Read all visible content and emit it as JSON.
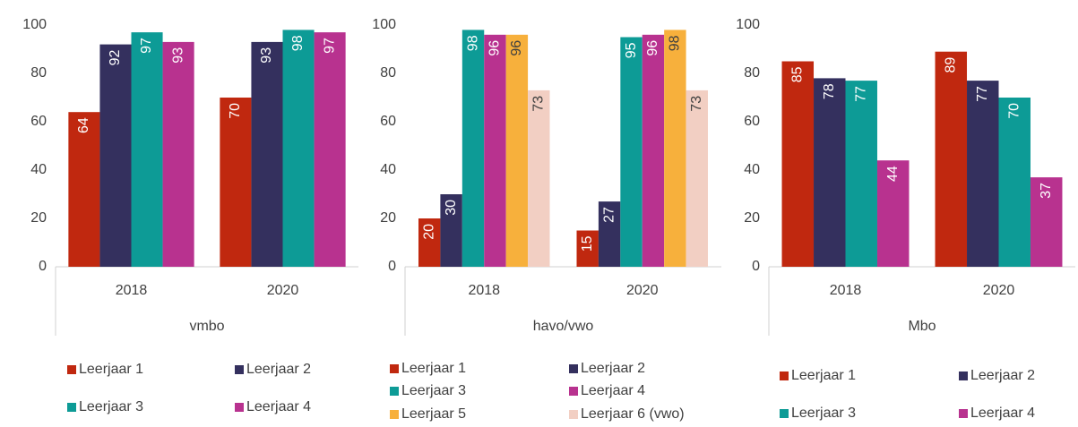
{
  "chart_data": [
    {
      "type": "bar",
      "group_label": "vmbo",
      "categories": [
        "2018",
        "2020"
      ],
      "ylim": [
        0,
        100
      ],
      "yticks": [
        0,
        20,
        40,
        60,
        80,
        100
      ],
      "series": [
        {
          "name": "Leerjaar 1",
          "color": "#c0280f",
          "values": [
            64,
            70
          ]
        },
        {
          "name": "Leerjaar 2",
          "color": "#34305e",
          "values": [
            92,
            93
          ]
        },
        {
          "name": "Leerjaar 3",
          "color": "#0d9b96",
          "values": [
            97,
            98
          ]
        },
        {
          "name": "Leerjaar 4",
          "color": "#b8328f",
          "values": [
            93,
            97
          ]
        }
      ]
    },
    {
      "type": "bar",
      "group_label": "havo/vwo",
      "categories": [
        "2018",
        "2020"
      ],
      "ylim": [
        0,
        100
      ],
      "yticks": [
        0,
        20,
        40,
        60,
        80,
        100
      ],
      "series": [
        {
          "name": "Leerjaar 1",
          "color": "#c0280f",
          "values": [
            20,
            15
          ]
        },
        {
          "name": "Leerjaar 2",
          "color": "#34305e",
          "values": [
            30,
            27
          ]
        },
        {
          "name": "Leerjaar 3",
          "color": "#0d9b96",
          "values": [
            98,
            95
          ]
        },
        {
          "name": "Leerjaar 4",
          "color": "#b8328f",
          "values": [
            96,
            96
          ]
        },
        {
          "name": "Leerjaar 5",
          "color": "#f7b03c",
          "values": [
            96,
            98
          ]
        },
        {
          "name": "Leerjaar 6 (vwo)",
          "color": "#f2cfc3",
          "values": [
            73,
            73
          ]
        }
      ]
    },
    {
      "type": "bar",
      "group_label": "Mbo",
      "categories": [
        "2018",
        "2020"
      ],
      "ylim": [
        0,
        100
      ],
      "yticks": [
        0,
        20,
        40,
        60,
        80,
        100
      ],
      "series": [
        {
          "name": "Leerjaar 1",
          "color": "#c0280f",
          "values": [
            85,
            89
          ]
        },
        {
          "name": "Leerjaar 2",
          "color": "#34305e",
          "values": [
            78,
            77
          ]
        },
        {
          "name": "Leerjaar 3",
          "color": "#0d9b96",
          "values": [
            77,
            70
          ]
        },
        {
          "name": "Leerjaar 4",
          "color": "#b8328f",
          "values": [
            44,
            37
          ]
        }
      ]
    }
  ]
}
